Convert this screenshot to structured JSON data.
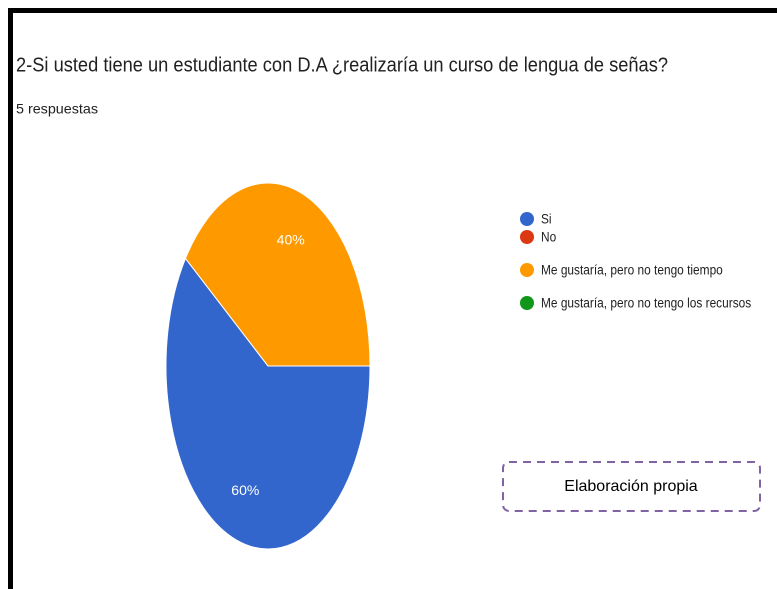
{
  "chart_data": {
    "type": "pie",
    "title": "2-Si usted tiene un estudiante con D.A ¿realizaría un curso de lengua de señas?",
    "subtitle": "5 respuestas",
    "categories": [
      "Si",
      "No",
      "Me gustaría, pero no tengo tiempo",
      "Me gustaría, pero no tengo los recursos"
    ],
    "values": [
      60,
      0,
      40,
      0
    ],
    "value_labels": [
      "60%",
      null,
      "40%",
      null
    ],
    "colors": [
      "#3366cc",
      "#dc3912",
      "#ff9900",
      "#109618"
    ],
    "legend": "right",
    "annotation": "Elaboración propia"
  }
}
